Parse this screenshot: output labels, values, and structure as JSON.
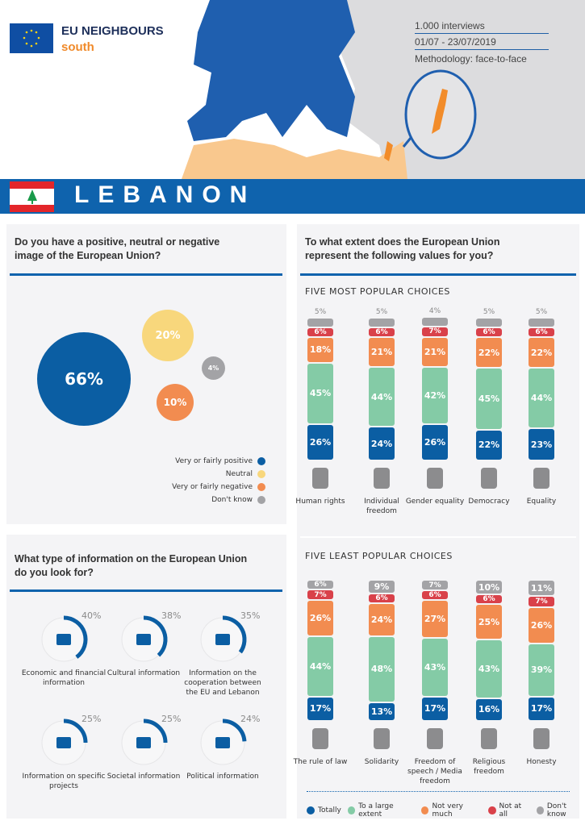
{
  "header": {
    "brand_line1": "EU NEIGHBOURS",
    "brand_line2": "south",
    "interviews": "1.000 interviews",
    "dates": "01/07 - 23/07/2019",
    "methodology": "Methodology: face-to-face",
    "country": "LEBANON"
  },
  "colors": {
    "blue": "#0b5ea3",
    "green": "#84cba6",
    "orange": "#f28c50",
    "red": "#d9414a",
    "gray": "#a3a3a6",
    "yellow": "#f8d77c"
  },
  "chart_data": [
    {
      "type": "bubble",
      "title": "Do you have a positive, neutral or negative image of the European Union?",
      "items": [
        {
          "label": "Very or fairly positive",
          "value": 66,
          "display": "66%"
        },
        {
          "label": "Neutral",
          "value": 20,
          "display": "20%"
        },
        {
          "label": "Very or fairly negative",
          "value": 10,
          "display": "10%"
        },
        {
          "label": "Don't know",
          "value": 4,
          "display": "4%"
        }
      ]
    },
    {
      "type": "donut",
      "title": "What type of information on the European Union do you look for?",
      "items": [
        {
          "label": "Economic and financial information",
          "value": 40,
          "display": "40%",
          "icon": "chart-icon"
        },
        {
          "label": "Cultural information",
          "value": 38,
          "display": "38%",
          "icon": "museum-icon"
        },
        {
          "label": "Information on the cooperation between the EU and Lebanon",
          "value": 35,
          "display": "35%",
          "icon": "handshake-icon"
        },
        {
          "label": "Information on specific projects",
          "value": 25,
          "display": "25%",
          "icon": "target-icon"
        },
        {
          "label": "Societal information",
          "value": 25,
          "display": "25%",
          "icon": "info-bubble-icon"
        },
        {
          "label": "Political information",
          "value": 24,
          "display": "24%",
          "icon": "person-icon"
        }
      ]
    },
    {
      "type": "bar",
      "stacked": true,
      "title": "To what extent does the European Union represent the following values for you?",
      "subtitle": "FIVE MOST POPULAR CHOICES",
      "series_names": [
        "Totally",
        "To a large extent",
        "Not very much",
        "Not at all",
        "Don't know"
      ],
      "categories": [
        "Human rights",
        "Individual freedom",
        "Gender equality",
        "Democracy",
        "Equality"
      ],
      "series": [
        {
          "name": "Totally",
          "values": [
            26,
            24,
            26,
            22,
            23
          ]
        },
        {
          "name": "To a large extent",
          "values": [
            45,
            44,
            42,
            45,
            44
          ]
        },
        {
          "name": "Not very much",
          "values": [
            18,
            21,
            21,
            22,
            22
          ]
        },
        {
          "name": "Not at all",
          "values": [
            6,
            6,
            7,
            6,
            6
          ]
        },
        {
          "name": "Don't know",
          "values": [
            5,
            5,
            4,
            5,
            5
          ]
        }
      ]
    },
    {
      "type": "bar",
      "stacked": true,
      "subtitle": "FIVE LEAST POPULAR CHOICES",
      "categories": [
        "The rule of law",
        "Solidarity",
        "Freedom of speech / Media freedom",
        "Religious freedom",
        "Honesty"
      ],
      "series": [
        {
          "name": "Totally",
          "values": [
            17,
            13,
            17,
            16,
            17
          ]
        },
        {
          "name": "To a large extent",
          "values": [
            44,
            48,
            43,
            43,
            39
          ]
        },
        {
          "name": "Not very much",
          "values": [
            26,
            24,
            27,
            25,
            26
          ]
        },
        {
          "name": "Not at all",
          "values": [
            7,
            6,
            6,
            6,
            7
          ]
        },
        {
          "name": "Don't know",
          "values": [
            6,
            9,
            7,
            10,
            11
          ]
        }
      ]
    }
  ]
}
